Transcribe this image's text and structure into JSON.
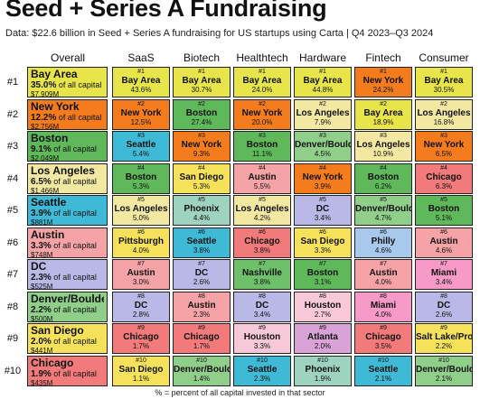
{
  "title": "Seed + Series A Fundraising",
  "subtitle": "Data: $22.6 billion in Seed + Series A fundraising for US startups using Carta | Q4 2023–Q3 2024",
  "footer": "% = percent of all capital invested in that sector",
  "chart_data": {
    "type": "table",
    "columns": [
      "Overall",
      "SaaS",
      "Biotech",
      "Healthtech",
      "Hardware",
      "Fintech",
      "Consumer"
    ],
    "overall": [
      {
        "rank": "#1",
        "city": "Bay Area",
        "pct": "35.0%",
        "pct_suffix": "of all capital",
        "amount": "$7,909M",
        "color": "#e8e54a"
      },
      {
        "rank": "#2",
        "city": "New York",
        "pct": "12.2%",
        "pct_suffix": "of all capital",
        "amount": "$2,756M",
        "color": "#f47c1c"
      },
      {
        "rank": "#3",
        "city": "Boston",
        "pct": "9.1%",
        "pct_suffix": "of all capital",
        "amount": "$2,049M",
        "color": "#5fb85a"
      },
      {
        "rank": "#4",
        "city": "Los Angeles",
        "pct": "6.5%",
        "pct_suffix": "of all capital",
        "amount": "$1,466M",
        "color": "#f3e8a2"
      },
      {
        "rank": "#5",
        "city": "Seattle",
        "pct": "3.9%",
        "pct_suffix": "of all capital",
        "amount": "$881M",
        "color": "#3fbad6"
      },
      {
        "rank": "#6",
        "city": "Austin",
        "pct": "3.3%",
        "pct_suffix": "of all capital",
        "amount": "$748M",
        "color": "#f5a3a6"
      },
      {
        "rank": "#7",
        "city": "DC",
        "pct": "2.3%",
        "pct_suffix": "of all capital",
        "amount": "$525M",
        "color": "#b9b8e6"
      },
      {
        "rank": "#8",
        "city": "Denver/Boulder",
        "pct": "2.2%",
        "pct_suffix": "of all capital",
        "amount": "$500M",
        "color": "#8fcf8a"
      },
      {
        "rank": "#9",
        "city": "San Diego",
        "pct": "2.0%",
        "pct_suffix": "of all capital",
        "amount": "$441M",
        "color": "#f6e25a"
      },
      {
        "rank": "#10",
        "city": "Chicago",
        "pct": "1.9%",
        "pct_suffix": "of all capital",
        "amount": "$435M",
        "color": "#f27a7a"
      }
    ],
    "sectors": [
      {
        "name": "SaaS",
        "cells": [
          {
            "rank": "#1",
            "city": "Bay Area",
            "pct": "43.6%",
            "color": "#e8e54a"
          },
          {
            "rank": "#2",
            "city": "New York",
            "pct": "12.5%",
            "color": "#f47c1c"
          },
          {
            "rank": "#3",
            "city": "Seattle",
            "pct": "5.4%",
            "color": "#3fbad6"
          },
          {
            "rank": "#4",
            "city": "Boston",
            "pct": "5.3%",
            "color": "#5fb85a"
          },
          {
            "rank": "#5",
            "city": "Los Angeles",
            "pct": "5.0%",
            "color": "#f3e8a2"
          },
          {
            "rank": "#6",
            "city": "Pittsburgh",
            "pct": "4.0%",
            "color": "#f6e25a"
          },
          {
            "rank": "#7",
            "city": "Austin",
            "pct": "3.0%",
            "color": "#f5a3a6"
          },
          {
            "rank": "#8",
            "city": "DC",
            "pct": "2.8%",
            "color": "#b9b8e6"
          },
          {
            "rank": "#9",
            "city": "Chicago",
            "pct": "1.7%",
            "color": "#f27a7a"
          },
          {
            "rank": "#10",
            "city": "San Diego",
            "pct": "1.1%",
            "color": "#f6e25a"
          }
        ]
      },
      {
        "name": "Biotech",
        "cells": [
          {
            "rank": "#1",
            "city": "Bay Area",
            "pct": "30.7%",
            "color": "#e8e54a"
          },
          {
            "rank": "#2",
            "city": "Boston",
            "pct": "27.4%",
            "color": "#5fb85a"
          },
          {
            "rank": "#3",
            "city": "New York",
            "pct": "9.3%",
            "color": "#f47c1c"
          },
          {
            "rank": "#4",
            "city": "San Diego",
            "pct": "5.3%",
            "color": "#f6e25a"
          },
          {
            "rank": "#5",
            "city": "Phoenix",
            "pct": "4.4%",
            "color": "#9ed3c0"
          },
          {
            "rank": "#6",
            "city": "Seattle",
            "pct": "3.8%",
            "color": "#3fbad6"
          },
          {
            "rank": "#7",
            "city": "DC",
            "pct": "2.6%",
            "color": "#b9b8e6"
          },
          {
            "rank": "#8",
            "city": "Austin",
            "pct": "2.3%",
            "color": "#f5a3a6"
          },
          {
            "rank": "#9",
            "city": "Chicago",
            "pct": "1.7%",
            "color": "#f27a7a"
          },
          {
            "rank": "#10",
            "city": "Denver/Boulder",
            "pct": "1.4%",
            "color": "#8fcf8a"
          }
        ]
      },
      {
        "name": "Healthtech",
        "cells": [
          {
            "rank": "#1",
            "city": "Bay Area",
            "pct": "24.0%",
            "color": "#e8e54a"
          },
          {
            "rank": "#2",
            "city": "New York",
            "pct": "20.0%",
            "color": "#f47c1c"
          },
          {
            "rank": "#3",
            "city": "Boston",
            "pct": "11.1%",
            "color": "#5fb85a"
          },
          {
            "rank": "#4",
            "city": "Austin",
            "pct": "5.5%",
            "color": "#f5a3a6"
          },
          {
            "rank": "#5",
            "city": "Los Angeles",
            "pct": "4.2%",
            "color": "#f3e8a2"
          },
          {
            "rank": "#6",
            "city": "Chicago",
            "pct": "3.8%",
            "color": "#f27a7a"
          },
          {
            "rank": "#7",
            "city": "Nashville",
            "pct": "3.8%",
            "color": "#6fc06a"
          },
          {
            "rank": "#8",
            "city": "DC",
            "pct": "3.4%",
            "color": "#b9b8e6"
          },
          {
            "rank": "#9",
            "city": "Houston",
            "pct": "3.3%",
            "color": "#f7c8d8"
          },
          {
            "rank": "#10",
            "city": "Seattle",
            "pct": "2.3%",
            "color": "#3fbad6"
          }
        ]
      },
      {
        "name": "Hardware",
        "cells": [
          {
            "rank": "#1",
            "city": "Bay Area",
            "pct": "44.8%",
            "color": "#e8e54a"
          },
          {
            "rank": "#2",
            "city": "Los Angeles",
            "pct": "7.9%",
            "color": "#f3e8a2"
          },
          {
            "rank": "#3",
            "city": "Denver/Boulder",
            "pct": "4.5%",
            "color": "#8fcf8a"
          },
          {
            "rank": "#4",
            "city": "New York",
            "pct": "3.9%",
            "color": "#f47c1c"
          },
          {
            "rank": "#5",
            "city": "DC",
            "pct": "3.4%",
            "color": "#b9b8e6"
          },
          {
            "rank": "#6",
            "city": "San Diego",
            "pct": "3.3%",
            "color": "#f6e25a"
          },
          {
            "rank": "#7",
            "city": "Boston",
            "pct": "3.1%",
            "color": "#5fb85a"
          },
          {
            "rank": "#8",
            "city": "Houston",
            "pct": "2.7%",
            "color": "#f7c8d8"
          },
          {
            "rank": "#9",
            "city": "Atlanta",
            "pct": "2.0%",
            "color": "#d9a3d8"
          },
          {
            "rank": "#10",
            "city": "Phoenix",
            "pct": "1.9%",
            "color": "#9ed3c0"
          }
        ]
      },
      {
        "name": "Fintech",
        "cells": [
          {
            "rank": "#1",
            "city": "New York",
            "pct": "24.2%",
            "color": "#f47c1c"
          },
          {
            "rank": "#2",
            "city": "Bay Area",
            "pct": "18.9%",
            "color": "#e8e54a"
          },
          {
            "rank": "#3",
            "city": "Los Angeles",
            "pct": "10.9%",
            "color": "#f3e8a2"
          },
          {
            "rank": "#4",
            "city": "Boston",
            "pct": "6.2%",
            "color": "#5fb85a"
          },
          {
            "rank": "#5",
            "city": "Denver/Boulder",
            "pct": "4.7%",
            "color": "#8fcf8a"
          },
          {
            "rank": "#6",
            "city": "Philly",
            "pct": "4.6%",
            "color": "#a8c8ec"
          },
          {
            "rank": "#7",
            "city": "Austin",
            "pct": "4.0%",
            "color": "#f5a3a6"
          },
          {
            "rank": "#8",
            "city": "Miami",
            "pct": "4.0%",
            "color": "#f79ac8"
          },
          {
            "rank": "#9",
            "city": "Chicago",
            "pct": "3.5%",
            "color": "#f27a7a"
          },
          {
            "rank": "#10",
            "city": "Seattle",
            "pct": "2.1%",
            "color": "#3fbad6"
          }
        ]
      },
      {
        "name": "Consumer",
        "cells": [
          {
            "rank": "#1",
            "city": "Bay Area",
            "pct": "30.5%",
            "color": "#e8e54a"
          },
          {
            "rank": "#2",
            "city": "Los Angeles",
            "pct": "16.8%",
            "color": "#f3e8a2"
          },
          {
            "rank": "#3",
            "city": "New York",
            "pct": "6.5%",
            "color": "#f47c1c"
          },
          {
            "rank": "#4",
            "city": "Chicago",
            "pct": "6.3%",
            "color": "#f27a7a"
          },
          {
            "rank": "#5",
            "city": "Boston",
            "pct": "5.1%",
            "color": "#5fb85a"
          },
          {
            "rank": "#6",
            "city": "Austin",
            "pct": "4.6%",
            "color": "#f5a3a6"
          },
          {
            "rank": "#7",
            "city": "Miami",
            "pct": "3.4%",
            "color": "#f79ac8"
          },
          {
            "rank": "#8",
            "city": "DC",
            "pct": "2.6%",
            "color": "#b9b8e6"
          },
          {
            "rank": "#9",
            "city": "Salt Lake/Provo",
            "pct": "2.2%",
            "color": "#f6e25a"
          },
          {
            "rank": "#10",
            "city": "Denver/Boulder",
            "pct": "2.1%",
            "color": "#8fcf8a"
          }
        ]
      }
    ]
  }
}
